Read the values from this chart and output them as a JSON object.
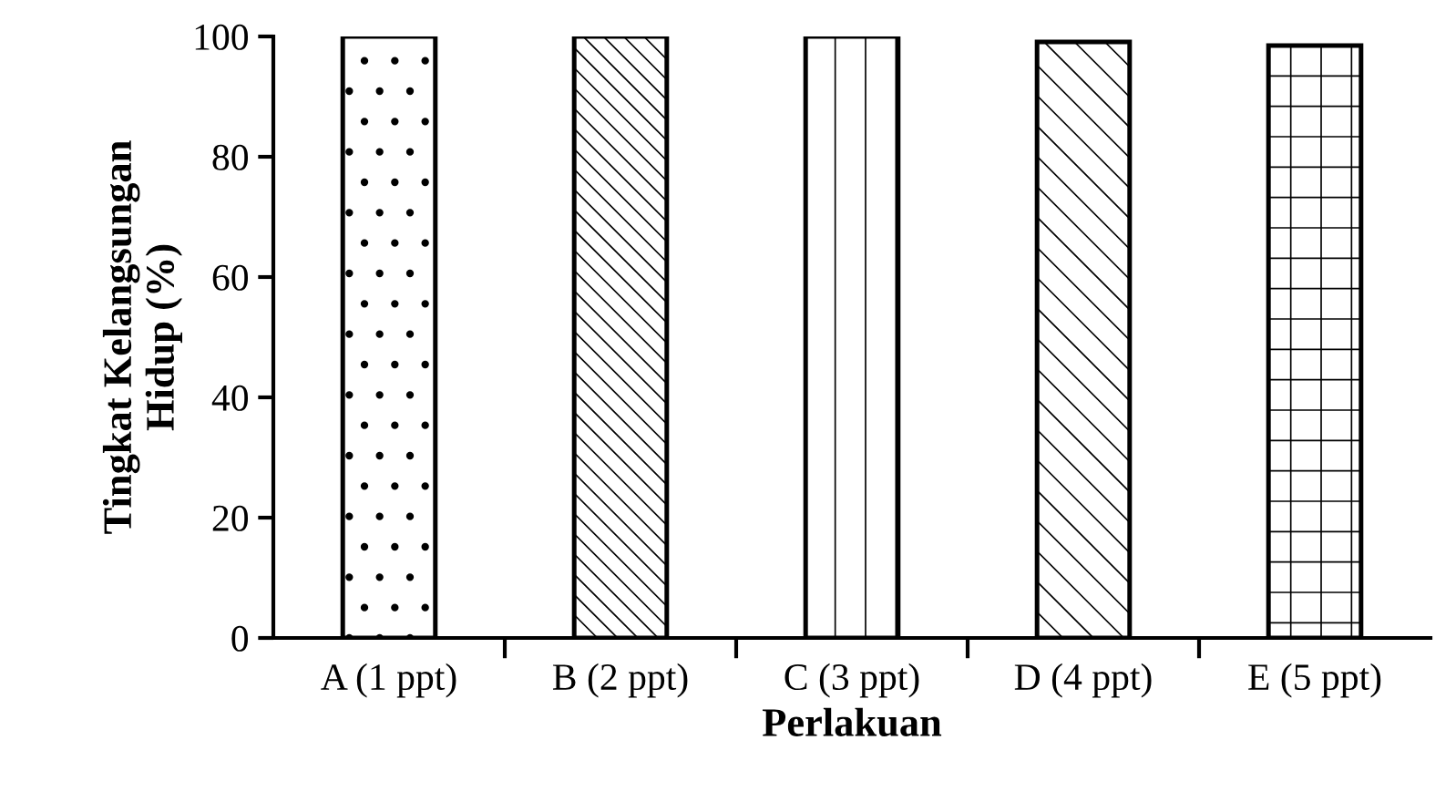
{
  "chart_data": {
    "type": "bar",
    "xlabel": "Perlakuan",
    "ylabel": "Tingkat Kelangsungan\nHidup (%)",
    "categories": [
      "A (1 ppt)",
      "B (2 ppt)",
      "C (3 ppt)",
      "D (4 ppt)",
      "E (5 ppt)"
    ],
    "values": [
      100,
      100,
      100,
      99.1,
      98.5
    ],
    "color": "#000000",
    "ylim": [
      0,
      100
    ],
    "yticks": [
      0,
      20,
      40,
      60,
      80,
      100
    ],
    "grid": false,
    "legend": false
  }
}
